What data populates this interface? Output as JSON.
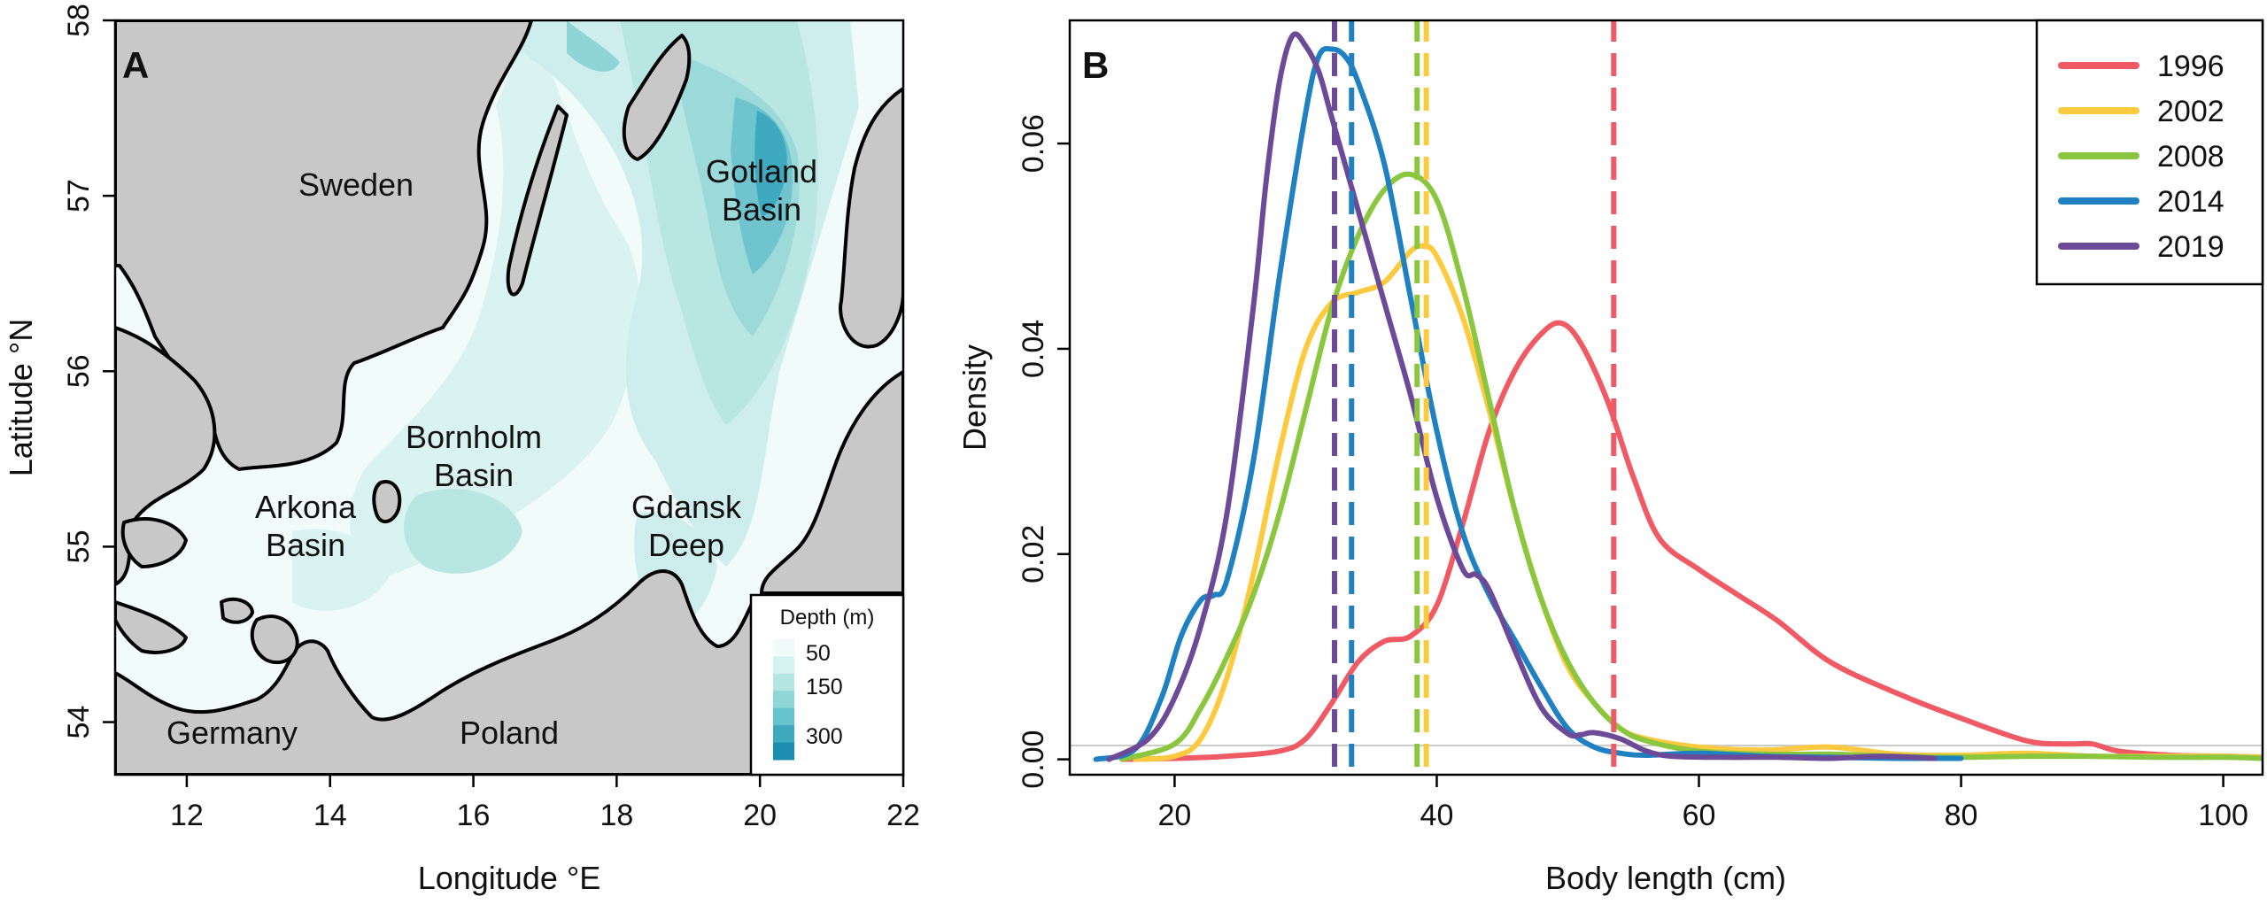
{
  "panel_a": {
    "letter": "A",
    "xlabel": "Longitude °E",
    "ylabel": "Latitude °N",
    "xticks": [
      "12",
      "14",
      "16",
      "18",
      "20",
      "22"
    ],
    "yticks": [
      "54",
      "55",
      "56",
      "57",
      "58"
    ],
    "regions": [
      {
        "label": "Sweden"
      },
      {
        "label": "Gotland Basin"
      },
      {
        "label": "Bornholm Basin"
      },
      {
        "label": "Arkona Basin"
      },
      {
        "label": "Gdansk Deep"
      },
      {
        "label": "Germany"
      },
      {
        "label": "Poland"
      }
    ],
    "legend": {
      "title": "Depth (m)",
      "levels": [
        "50",
        "150",
        "300"
      ],
      "colors": [
        "#eefbf9",
        "#d4f2ef",
        "#b3e6e3",
        "#8fd6d8",
        "#66c2cc",
        "#3fa9bf",
        "#1d8cb1"
      ]
    },
    "colors": {
      "land": "#c8c8c8",
      "coast": "#000000",
      "shallow": "#f1fbfa"
    }
  },
  "chart_data": {
    "type": "line",
    "letter": "B",
    "title": "",
    "xlabel": "Body length (cm)",
    "ylabel": "Density",
    "xlim": [
      12,
      103
    ],
    "ylim": [
      -0.0015,
      0.072
    ],
    "xticks": [
      "20",
      "40",
      "60",
      "80",
      "100"
    ],
    "yticks": [
      "0.00",
      "0.02",
      "0.04",
      "0.06"
    ],
    "series": [
      {
        "name": "1996",
        "color": "#f05a64",
        "mean": 53.5,
        "x": [
          16,
          20,
          24,
          28,
          30,
          32,
          34,
          36,
          38,
          40,
          42,
          44,
          46,
          48,
          49.5,
          51,
          53,
          55,
          57,
          60,
          63,
          66,
          70,
          75,
          80,
          85,
          88,
          90,
          92,
          96,
          100,
          103
        ],
        "y": [
          0.0,
          0.0001,
          0.0003,
          0.0008,
          0.002,
          0.0055,
          0.0095,
          0.0115,
          0.012,
          0.015,
          0.023,
          0.032,
          0.038,
          0.0415,
          0.0425,
          0.0405,
          0.035,
          0.0275,
          0.0215,
          0.0185,
          0.016,
          0.0135,
          0.0095,
          0.0065,
          0.004,
          0.0018,
          0.0015,
          0.0015,
          0.0008,
          0.0004,
          0.0003,
          0.0002
        ]
      },
      {
        "name": "2002",
        "color": "#fcc93f",
        "mean": 39.2,
        "x": [
          17,
          20,
          22,
          24,
          26,
          28,
          30,
          32,
          34,
          36,
          38,
          39,
          40,
          42,
          44,
          46,
          48,
          50,
          52,
          54,
          56,
          60,
          65,
          70,
          75,
          80,
          85,
          90,
          95,
          100,
          103
        ],
        "y": [
          0.0,
          0.0003,
          0.002,
          0.008,
          0.018,
          0.03,
          0.04,
          0.0445,
          0.0455,
          0.0465,
          0.0495,
          0.05,
          0.049,
          0.043,
          0.034,
          0.024,
          0.0155,
          0.009,
          0.0055,
          0.003,
          0.002,
          0.0012,
          0.0009,
          0.0012,
          0.0005,
          0.0004,
          0.0006,
          0.0003,
          0.0003,
          0.0003,
          0.0002
        ]
      },
      {
        "name": "2008",
        "color": "#8bc63f",
        "mean": 38.5,
        "x": [
          16,
          20,
          22,
          24,
          26,
          28,
          30,
          32,
          34,
          36,
          38,
          40,
          42,
          44,
          46,
          48,
          50,
          52,
          54,
          56,
          60,
          65,
          70,
          75,
          80,
          85,
          90,
          95,
          100,
          103
        ],
        "y": [
          0.0,
          0.0015,
          0.005,
          0.01,
          0.016,
          0.024,
          0.034,
          0.044,
          0.051,
          0.0555,
          0.057,
          0.0545,
          0.046,
          0.035,
          0.024,
          0.0155,
          0.0095,
          0.0055,
          0.003,
          0.0018,
          0.0008,
          0.0005,
          0.0005,
          0.0003,
          0.0002,
          0.0003,
          0.0003,
          0.0002,
          0.0002,
          0.0001
        ]
      },
      {
        "name": "2014",
        "color": "#1f80c2",
        "mean": 33.5,
        "x": [
          14,
          17,
          19,
          20.5,
          22,
          23,
          24,
          26,
          28,
          30,
          31,
          32,
          33,
          34,
          36,
          38,
          40,
          42,
          44,
          46,
          48,
          50,
          52,
          54,
          56,
          60,
          65,
          70,
          75,
          80
        ],
        "y": [
          0.0,
          0.001,
          0.006,
          0.012,
          0.0155,
          0.016,
          0.0175,
          0.029,
          0.047,
          0.063,
          0.0685,
          0.0692,
          0.0685,
          0.066,
          0.058,
          0.045,
          0.032,
          0.022,
          0.016,
          0.0115,
          0.007,
          0.003,
          0.0012,
          0.0006,
          0.0004,
          0.0006,
          0.0003,
          0.0002,
          0.0001,
          0.0001
        ]
      },
      {
        "name": "2019",
        "color": "#6c4a97",
        "mean": 32.2,
        "x": [
          15,
          18,
          20,
          22,
          24,
          26,
          27,
          28,
          29,
          30,
          31,
          32,
          34,
          36,
          38,
          40,
          42,
          43,
          44,
          46,
          48,
          50,
          51,
          52,
          54,
          56,
          58,
          62,
          66,
          70,
          74,
          78
        ],
        "y": [
          0.0,
          0.002,
          0.006,
          0.013,
          0.024,
          0.044,
          0.0565,
          0.066,
          0.0705,
          0.0695,
          0.067,
          0.0625,
          0.0535,
          0.0445,
          0.0355,
          0.0255,
          0.0185,
          0.018,
          0.0165,
          0.0105,
          0.005,
          0.0025,
          0.0024,
          0.0026,
          0.002,
          0.0008,
          0.0003,
          0.0002,
          0.0002,
          0.0001,
          0.0003,
          0.0001
        ]
      }
    ]
  }
}
